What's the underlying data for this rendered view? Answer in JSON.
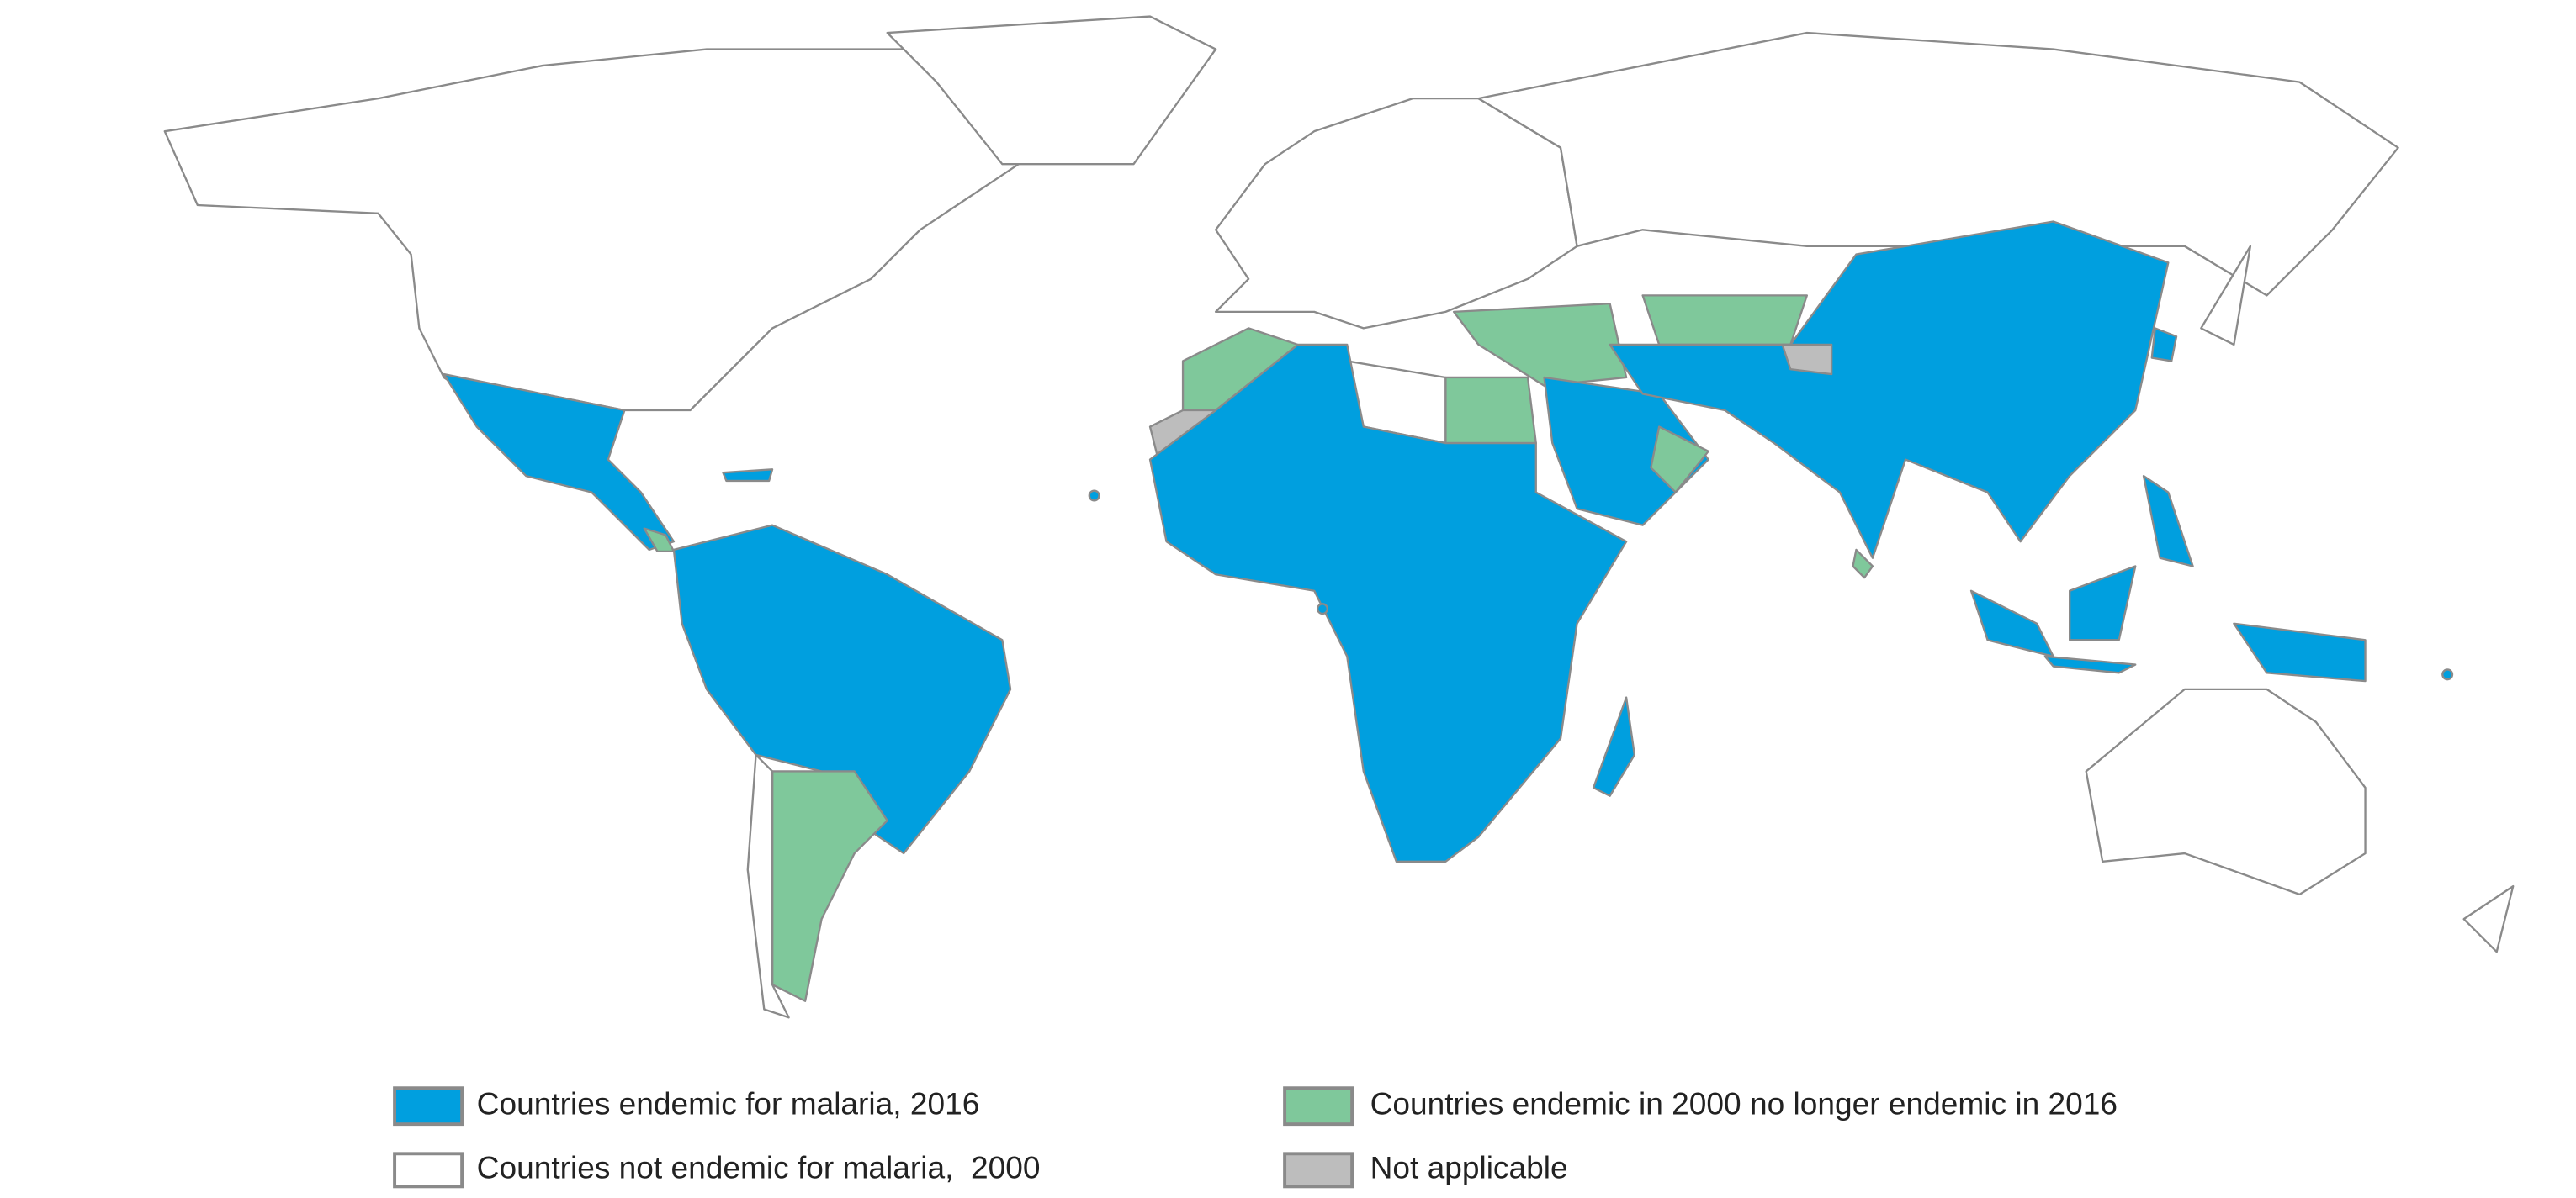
{
  "legend": {
    "items": [
      {
        "label": "Countries endemic for malaria, 2016",
        "color": "#009fdf"
      },
      {
        "label": "Countries not endemic for malaria,  2000",
        "color": "#ffffff"
      },
      {
        "label": "Countries endemic in 2000 no longer endemic in 2016",
        "color": "#7fc89b"
      },
      {
        "label": "Not applicable",
        "color": "#bdbdbd"
      }
    ]
  }
}
